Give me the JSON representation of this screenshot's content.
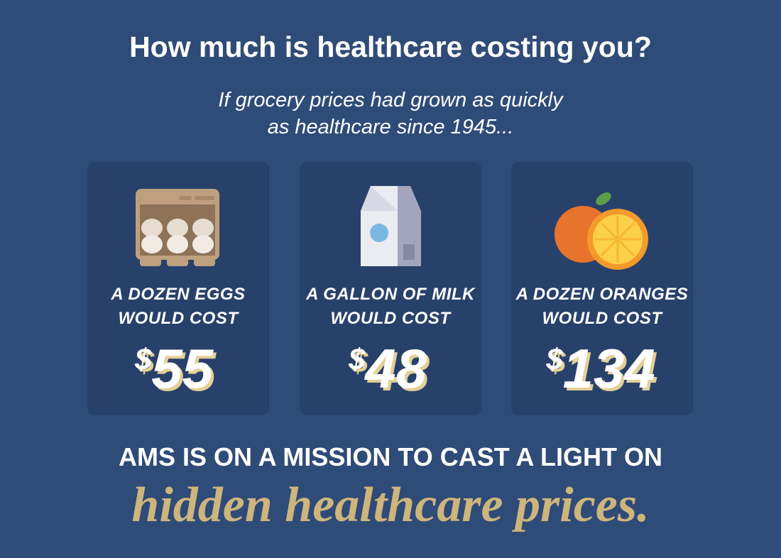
{
  "header": {
    "title": "How much is healthcare costing you?",
    "subtitle": [
      "If grocery prices had grown as quickly",
      "as healthcare since 1945..."
    ]
  },
  "cards": [
    {
      "label": [
        "A DOZEN EGGS",
        "WOULD COST"
      ],
      "currency": "$",
      "amount": "55"
    },
    {
      "label": [
        "A GALLON OF MILK",
        "WOULD COST"
      ],
      "currency": "$",
      "amount": "48"
    },
    {
      "label": [
        "A DOZEN ORANGES",
        "WOULD COST"
      ],
      "currency": "$",
      "amount": "134"
    }
  ],
  "footer": {
    "statement": "AMS IS ON A MISSION TO CAST A LIGHT ON",
    "script": "hidden healthcare prices."
  }
}
